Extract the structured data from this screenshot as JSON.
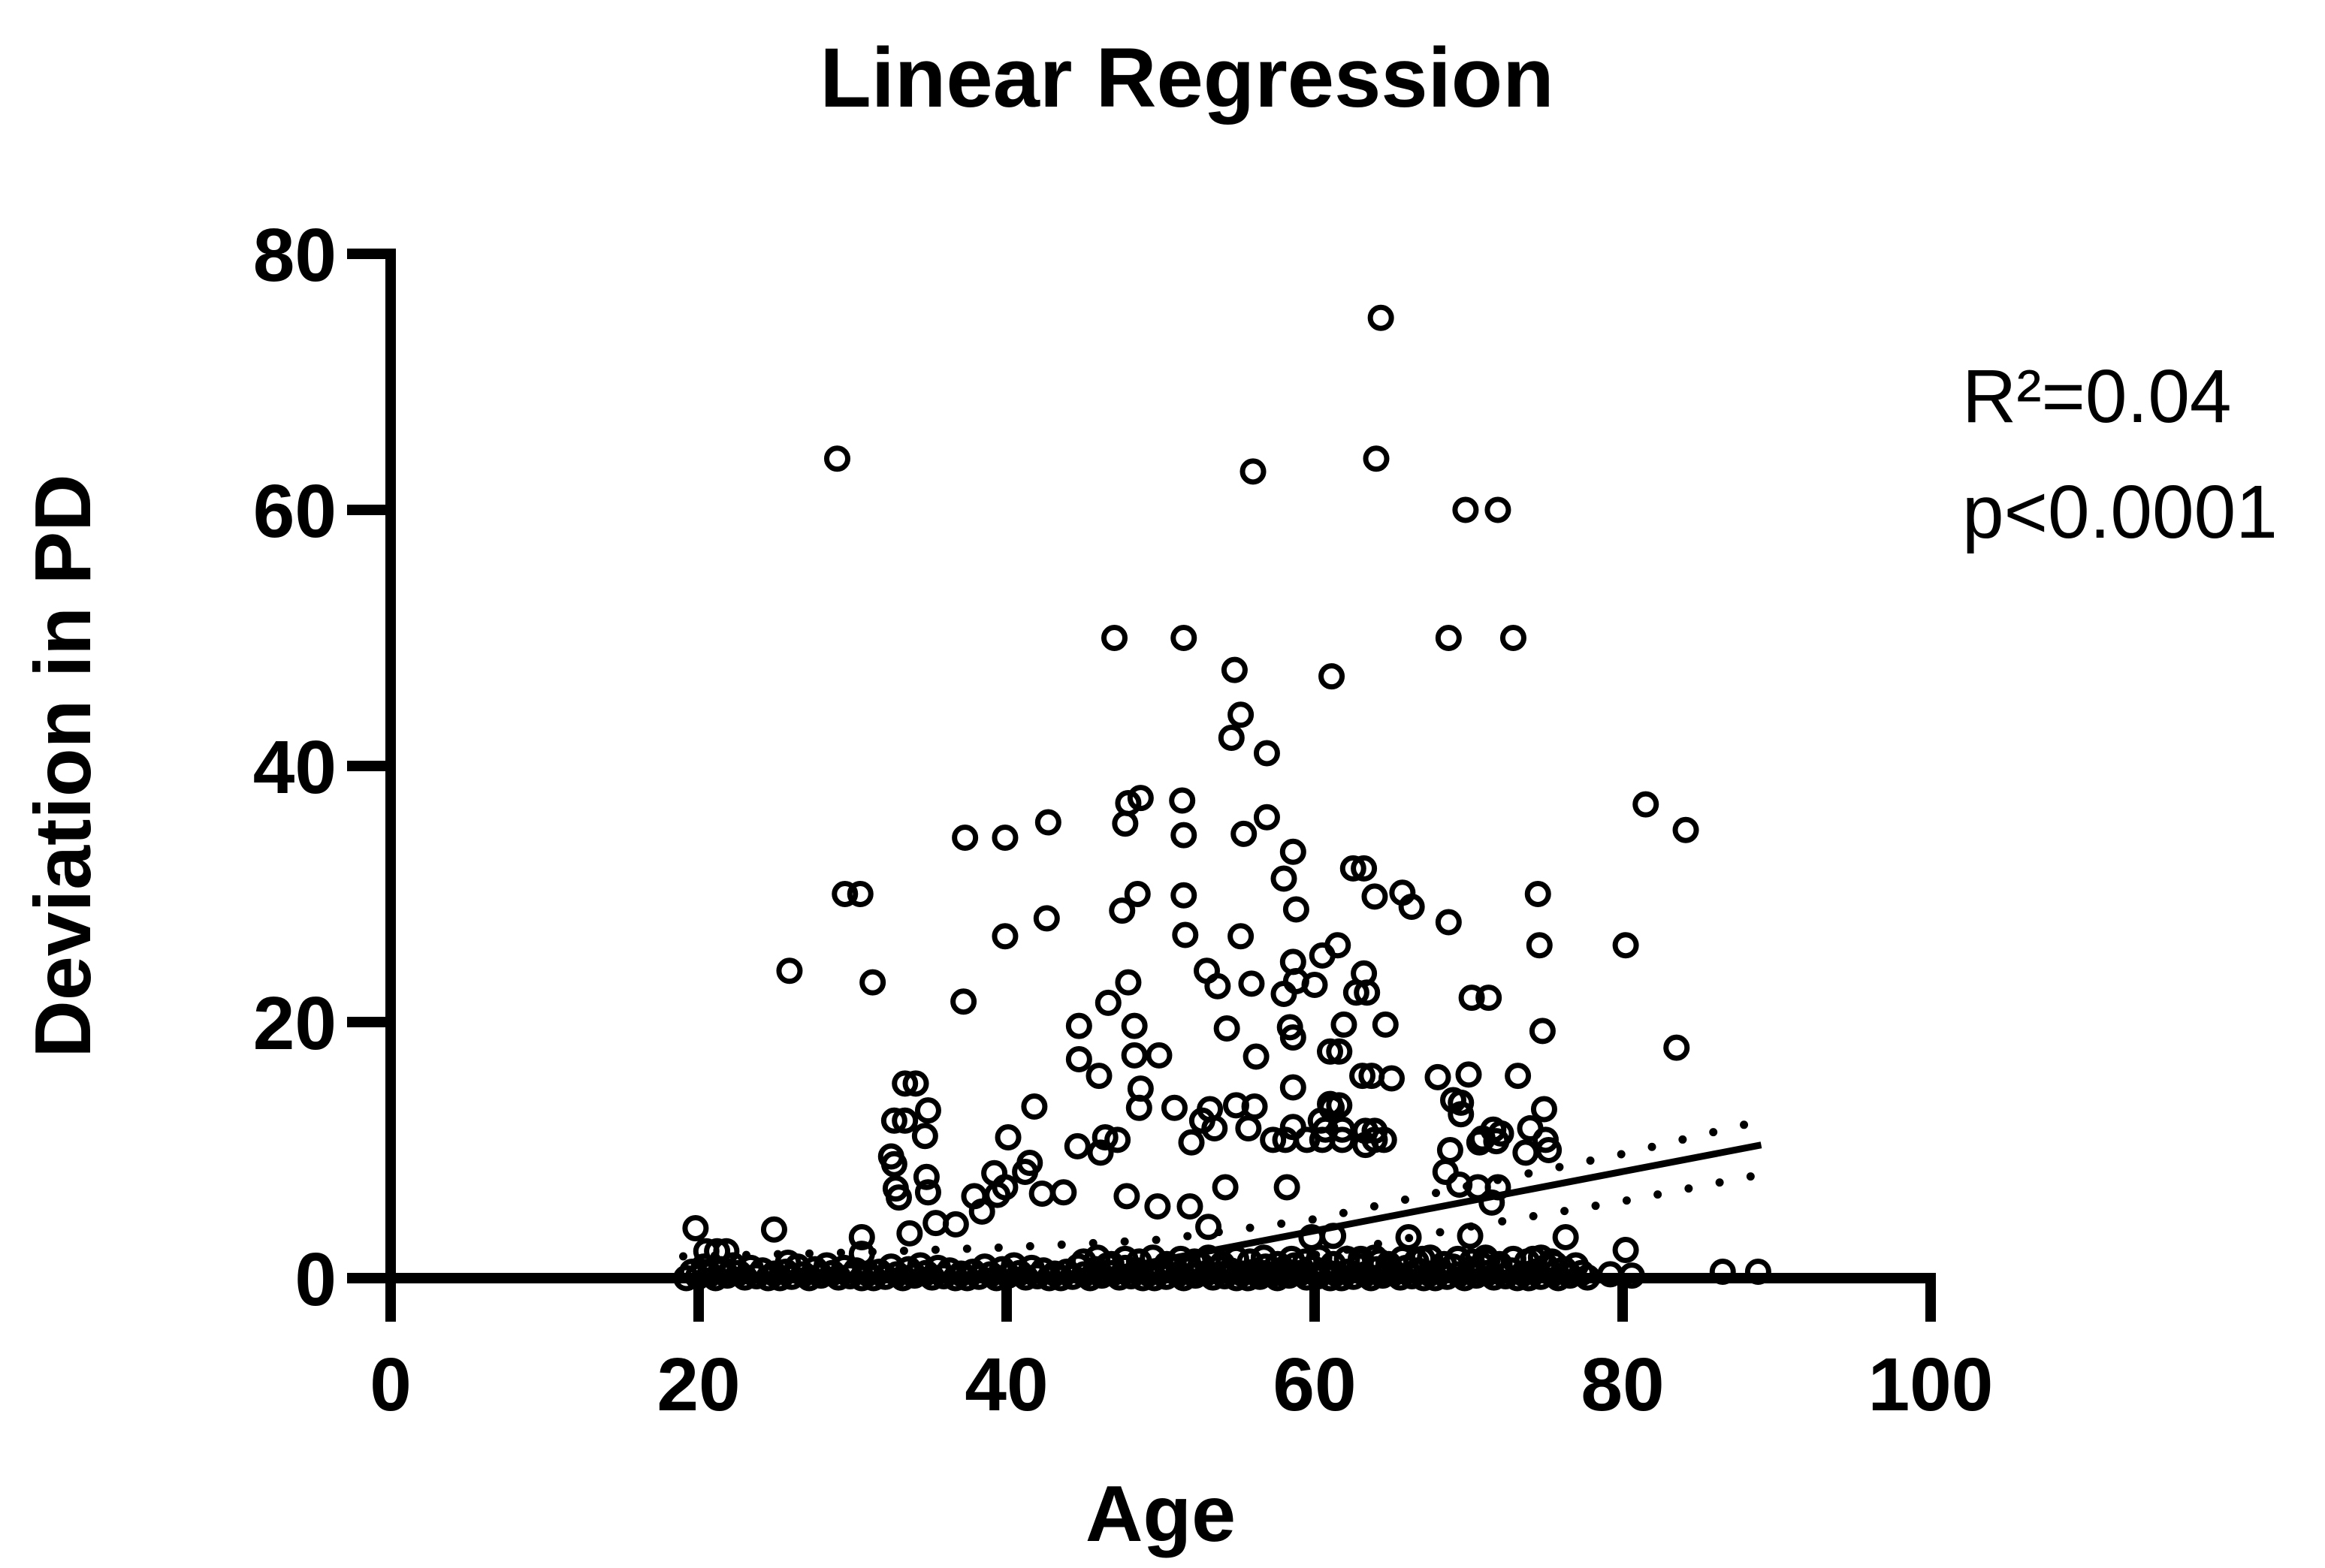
{
  "figure": {
    "title": "Linear Regression"
  },
  "axes": {
    "x_label": "Age",
    "y_label": "Deviation in PD"
  },
  "annotation": {
    "r_squared": "R²=0.04",
    "p_value": "p<0.0001"
  },
  "chart_data": {
    "type": "scatter",
    "title": "Linear Regression",
    "xlabel": "Age",
    "ylabel": "Deviation in PD",
    "xlim": [
      0,
      100
    ],
    "ylim": [
      0,
      80
    ],
    "x_ticks": [
      0,
      20,
      40,
      60,
      80,
      100
    ],
    "y_ticks": [
      0,
      20,
      40,
      60,
      80
    ],
    "grid": false,
    "legend": "none",
    "marker": {
      "shape": "open-circle",
      "radius": 14,
      "stroke_width": 7,
      "color": "#000000"
    },
    "stats_r_squared": 0.04,
    "stats_p": "p<0.0001",
    "points": [
      [
        64.3,
        75
      ],
      [
        29,
        64
      ],
      [
        64,
        64
      ],
      [
        56,
        63
      ],
      [
        69.8,
        60
      ],
      [
        71.9,
        60
      ],
      [
        47,
        50
      ],
      [
        51.5,
        50
      ],
      [
        68.7,
        50
      ],
      [
        72.9,
        50
      ],
      [
        54.8,
        47.5
      ],
      [
        61.1,
        47
      ],
      [
        55.2,
        44
      ],
      [
        54.6,
        42.2
      ],
      [
        56.9,
        41
      ],
      [
        48.7,
        37.5
      ],
      [
        47.9,
        37.1
      ],
      [
        51.4,
        37.3
      ],
      [
        56.9,
        36
      ],
      [
        42.7,
        35.6
      ],
      [
        37.3,
        34.4
      ],
      [
        39.9,
        34.4
      ],
      [
        47.7,
        35.5
      ],
      [
        51.5,
        34.6
      ],
      [
        55.4,
        34.7
      ],
      [
        58.6,
        33.3
      ],
      [
        58,
        31.2
      ],
      [
        58.8,
        28.8
      ],
      [
        62.5,
        32
      ],
      [
        63.2,
        32
      ],
      [
        63.9,
        29.8
      ],
      [
        65.7,
        30.1
      ],
      [
        66.3,
        29
      ],
      [
        68.7,
        27.8
      ],
      [
        74.5,
        30
      ],
      [
        81.5,
        37
      ],
      [
        84.1,
        35
      ],
      [
        74.6,
        26
      ],
      [
        80.2,
        26
      ],
      [
        29.5,
        30
      ],
      [
        30.5,
        30
      ],
      [
        25.9,
        24
      ],
      [
        31.3,
        23.1
      ],
      [
        37.2,
        21.6
      ],
      [
        42.6,
        28.1
      ],
      [
        39.9,
        26.7
      ],
      [
        47.5,
        28.7
      ],
      [
        48.5,
        30
      ],
      [
        51.5,
        29.9
      ],
      [
        51.6,
        26.8
      ],
      [
        55.2,
        26.7
      ],
      [
        58.6,
        24.7
      ],
      [
        58,
        22.2
      ],
      [
        60.5,
        25.2
      ],
      [
        61.5,
        26
      ],
      [
        63.2,
        23.8
      ],
      [
        46.6,
        21.5
      ],
      [
        47.9,
        23.1
      ],
      [
        53,
        24
      ],
      [
        53.7,
        22.8
      ],
      [
        55.9,
        23
      ],
      [
        58.8,
        23.2
      ],
      [
        60,
        22.9
      ],
      [
        62.7,
        22.3
      ],
      [
        63.4,
        22.3
      ],
      [
        70.2,
        21.9
      ],
      [
        71.3,
        21.9
      ],
      [
        54.3,
        19.5
      ],
      [
        58.4,
        19.6
      ],
      [
        61.9,
        19.8
      ],
      [
        64.6,
        19.8
      ],
      [
        44.7,
        19.7
      ],
      [
        48.3,
        19.7
      ],
      [
        56.2,
        17.3
      ],
      [
        61,
        17.7
      ],
      [
        61.6,
        17.7
      ],
      [
        44.7,
        17.1
      ],
      [
        48.3,
        17.4
      ],
      [
        49.9,
        17.4
      ],
      [
        58.6,
        18.8
      ],
      [
        74.8,
        19.3
      ],
      [
        83.5,
        18
      ],
      [
        63.1,
        15.8
      ],
      [
        63.7,
        15.8
      ],
      [
        65,
        15.6
      ],
      [
        68,
        15.7
      ],
      [
        70,
        15.9
      ],
      [
        73.2,
        15.8
      ],
      [
        46,
        15.8
      ],
      [
        33.4,
        15.2
      ],
      [
        34.1,
        15.2
      ],
      [
        58.6,
        14.9
      ],
      [
        48.7,
        14.8
      ],
      [
        69.5,
        13.7
      ],
      [
        74.9,
        13.2
      ],
      [
        61,
        13.6
      ],
      [
        34.9,
        13.1
      ],
      [
        41.8,
        13.4
      ],
      [
        32.7,
        12.3
      ],
      [
        33.4,
        12.3
      ],
      [
        34.7,
        11.1
      ],
      [
        40.1,
        11
      ],
      [
        41.5,
        9
      ],
      [
        41.2,
        8.3
      ],
      [
        44.6,
        10.3
      ],
      [
        46.4,
        11
      ],
      [
        46.1,
        9.8
      ],
      [
        47.2,
        10.8
      ],
      [
        52,
        10.6
      ],
      [
        53.2,
        13.2
      ],
      [
        52.7,
        12.3
      ],
      [
        53.5,
        11.7
      ],
      [
        55.7,
        11.7
      ],
      [
        58.6,
        11.8
      ],
      [
        60.4,
        12.3
      ],
      [
        61.6,
        13.5
      ],
      [
        63.3,
        10.4
      ],
      [
        48.6,
        13.3
      ],
      [
        50.9,
        13.3
      ],
      [
        54.9,
        13.5
      ],
      [
        56.1,
        13.4
      ],
      [
        61.1,
        13.3
      ],
      [
        69,
        13.9
      ],
      [
        69.5,
        12.8
      ],
      [
        60.7,
        11.6
      ],
      [
        61.8,
        11.6
      ],
      [
        63.3,
        11.5
      ],
      [
        63.9,
        11.5
      ],
      [
        70.9,
        10.9
      ],
      [
        72.1,
        11.3
      ],
      [
        71.6,
        11.6
      ],
      [
        71.8,
        10.7
      ],
      [
        70.7,
        10.6
      ],
      [
        73.7,
        9.8
      ],
      [
        75.2,
        10
      ],
      [
        74,
        11.7
      ],
      [
        75,
        10.8
      ],
      [
        68.8,
        10
      ],
      [
        32.5,
        9.5
      ],
      [
        57.3,
        10.8
      ],
      [
        58.1,
        10.8
      ],
      [
        59.5,
        10.8
      ],
      [
        60.5,
        10.8
      ],
      [
        61.8,
        10.8
      ],
      [
        63.9,
        10.8
      ],
      [
        64.5,
        10.8
      ],
      [
        32.8,
        7
      ],
      [
        34.8,
        7.9
      ],
      [
        37.9,
        6.4
      ],
      [
        39.2,
        8.2
      ],
      [
        38.4,
        5.2
      ],
      [
        35.4,
        4.3
      ],
      [
        36.7,
        4.2
      ],
      [
        33,
        6.3
      ],
      [
        34.9,
        6.7
      ],
      [
        39.4,
        6.5
      ],
      [
        39.9,
        7.1
      ],
      [
        42.3,
        6.6
      ],
      [
        43.7,
        6.7
      ],
      [
        32.7,
        8.9
      ],
      [
        30.6,
        3.2
      ],
      [
        30.6,
        1.9
      ],
      [
        33.7,
        3.5
      ],
      [
        19.8,
        3.9
      ],
      [
        24.9,
        3.8
      ],
      [
        20.5,
        2.1
      ],
      [
        21.2,
        2.1
      ],
      [
        21.8,
        2.1
      ],
      [
        25.8,
        1.2
      ],
      [
        54.2,
        7.1
      ],
      [
        58.2,
        7.1
      ],
      [
        70.6,
        7.1
      ],
      [
        71.9,
        7.1
      ],
      [
        68.5,
        8.3
      ],
      [
        69.4,
        7.3
      ],
      [
        71.5,
        5.9
      ],
      [
        76.3,
        3.2
      ],
      [
        80.2,
        2.2
      ],
      [
        47.8,
        6.4
      ],
      [
        49.8,
        5.6
      ],
      [
        51.9,
        5.6
      ],
      [
        53.1,
        4
      ],
      [
        59.8,
        3.2
      ],
      [
        61.2,
        3.3
      ],
      [
        66.1,
        3.2
      ],
      [
        70.1,
        3.3
      ],
      [
        63,
        1.5
      ],
      [
        64.2,
        1.3
      ],
      [
        67,
        1.5
      ],
      [
        71.2,
        1.3
      ],
      [
        74.2,
        1.5
      ],
      [
        75.4,
        1.3
      ],
      [
        56.6,
        0.4
      ],
      [
        57.8,
        0.4
      ],
      [
        79.2,
        0.3
      ],
      [
        80.6,
        0.2
      ],
      [
        86.5,
        0.5
      ],
      [
        88.8,
        0.5
      ]
    ],
    "baseline_band": {
      "comment": "dense overlapping row of points hugging PD=0 from age 19 to 78",
      "age_start": 19.2,
      "age_end": 78,
      "step": 0.38,
      "pd_cycle": [
        0,
        0.5,
        0.1,
        0.9,
        0.3,
        0,
        0.7,
        0.2,
        1.0,
        0.4,
        0.05,
        0.8,
        0.15,
        0.6,
        0,
        0.35
      ]
    },
    "baseline_extra": {
      "comment": "second thicker layer of near-zero points, ages 45-76",
      "age_start": 45,
      "age_end": 76,
      "step": 0.9,
      "pd_cycle": [
        1.3,
        1.6,
        1.1,
        1.5
      ]
    },
    "regression_line": {
      "style": "solid",
      "points": [
        [
          44,
          0
        ],
        [
          89,
          10.4
        ]
      ]
    },
    "ci_upper": {
      "style": "dotted",
      "points": [
        [
          19,
          1.7
        ],
        [
          30,
          2.0
        ],
        [
          40,
          2.4
        ],
        [
          50,
          3.0
        ],
        [
          60,
          4.6
        ],
        [
          70,
          7.2
        ],
        [
          80,
          9.7
        ],
        [
          89,
          12.3
        ]
      ]
    },
    "ci_lower": {
      "style": "dotted",
      "points": [
        [
          52,
          0.2
        ],
        [
          58,
          1.4
        ],
        [
          62,
          2.2
        ],
        [
          70,
          4.0
        ],
        [
          80,
          6.0
        ],
        [
          89,
          8.1
        ]
      ]
    },
    "colors": {
      "points": "#000000",
      "line": "#000000",
      "axis": "#000000",
      "background": "#ffffff"
    }
  }
}
